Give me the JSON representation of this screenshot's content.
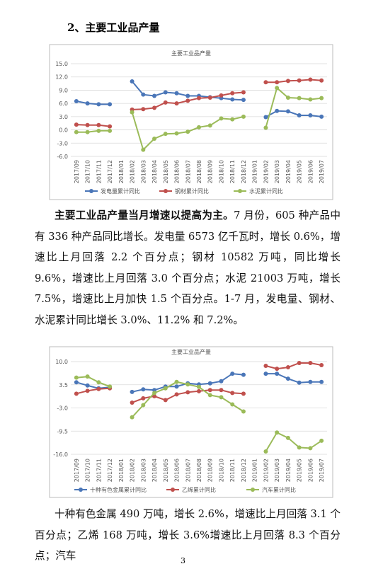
{
  "heading": "2、主要工业品产量",
  "paragraphs": [
    {
      "lead": "主要工业品产量当月增速以提高为主。",
      "text": "7 月份，605 种产品中有 336 种产品同比增长。发电量 6573 亿千瓦时，增长 0.6%，增速比上月回落 2.2 个百分点；钢材 10582 万吨，同比增长 9.6%，增速比上月回落 3.0 个百分点；水泥 21003 万吨，增长 7.5%，增速比上月加快 1.5 个百分点。1-7 月，发电量、钢材、水泥累计同比增长 3.0%、11.2% 和 7.2%。"
    },
    {
      "text": "十种有色金属 490 万吨，增长 2.6%，增速比上月回落 3.1 个百分点；乙烯 168 万吨，增长 3.6%增速比上月回落 8.3 个百分点；汽车"
    }
  ],
  "page_number": "3",
  "chart_data": [
    {
      "type": "line",
      "title": "主要工业品产量",
      "categories": [
        "2017/09",
        "2017/10",
        "2017/11",
        "2017/12",
        "2018/01",
        "2018/02",
        "2018/03",
        "2018/04",
        "2018/05",
        "2018/06",
        "2018/07",
        "2018/08",
        "2018/09",
        "2018/10",
        "2018/11",
        "2018/12",
        "2019/01",
        "2019/02",
        "2019/03",
        "2019/04",
        "2019/05",
        "2019/06",
        "2019/07"
      ],
      "ylim": [
        -6,
        15
      ],
      "yticks": [
        {
          "value": -6,
          "label": "-6.0"
        },
        {
          "value": -3,
          "label": "-3.0"
        },
        {
          "value": 0,
          "label": "0.0"
        },
        {
          "value": 3,
          "label": "3.0"
        },
        {
          "value": 6,
          "label": "6.0"
        },
        {
          "value": 9,
          "label": "9.0"
        },
        {
          "value": 12,
          "label": "12.0"
        },
        {
          "value": 15,
          "label": "15.0"
        }
      ],
      "grid": true,
      "series": [
        {
          "name": "发电量累计同比",
          "color": "#4a76b8",
          "values": [
            6.5,
            6.0,
            5.8,
            5.8,
            null,
            11.0,
            8.0,
            7.7,
            8.5,
            8.3,
            7.7,
            7.7,
            7.4,
            7.2,
            6.9,
            6.8,
            null,
            2.9,
            4.3,
            4.2,
            3.3,
            3.3,
            3.0
          ]
        },
        {
          "name": "钢材累计同比",
          "color": "#c0504d",
          "values": [
            1.2,
            1.1,
            1.1,
            0.8,
            null,
            4.6,
            4.7,
            5.0,
            6.2,
            6.0,
            6.6,
            7.2,
            7.3,
            7.8,
            8.3,
            8.5,
            null,
            10.8,
            10.8,
            11.1,
            11.2,
            11.4,
            11.2
          ]
        },
        {
          "name": "水泥累计同比",
          "color": "#9bbb59",
          "values": [
            -0.5,
            -0.5,
            -0.2,
            -0.2,
            null,
            4.0,
            -4.5,
            -2.0,
            -0.9,
            -0.8,
            -0.4,
            0.6,
            1.0,
            2.6,
            2.4,
            3.0,
            null,
            0.5,
            9.5,
            7.3,
            7.2,
            6.9,
            7.2
          ]
        }
      ]
    },
    {
      "type": "line",
      "title": "主要工业品产量",
      "categories": [
        "2017/09",
        "2017/10",
        "2017/11",
        "2017/12",
        "2018/01",
        "2018/02",
        "2018/03",
        "2018/04",
        "2018/05",
        "2018/06",
        "2018/07",
        "2018/08",
        "2018/09",
        "2018/10",
        "2018/11",
        "2018/12",
        "2019/01",
        "2019/02",
        "2019/03",
        "2019/04",
        "2019/05",
        "2019/06",
        "2019/07"
      ],
      "ylim": [
        -16,
        10
      ],
      "yticks": [
        {
          "value": -16,
          "label": "-16.0"
        },
        -9.5,
        {
          "value": -3,
          "label": "-3.0"
        },
        3.5,
        {
          "value": 10,
          "label": "10.0"
        }
      ],
      "grid": true,
      "series": [
        {
          "name": "十种有色金属累计同比",
          "color": "#4a76b8",
          "values": [
            4.2,
            3.3,
            2.5,
            2.8,
            null,
            1.5,
            2.2,
            2.0,
            3.0,
            3.0,
            3.9,
            3.6,
            3.9,
            4.5,
            6.6,
            6.3,
            null,
            6.6,
            6.6,
            5.2,
            4.1,
            4.3,
            4.3
          ]
        },
        {
          "name": "乙烯累计同比",
          "color": "#c0504d",
          "values": [
            1.0,
            1.8,
            2.3,
            2.5,
            null,
            -1.5,
            -0.3,
            0.3,
            -0.8,
            0.8,
            1.4,
            1.7,
            2.0,
            2.0,
            1.2,
            1.0,
            null,
            8.8,
            8.0,
            8.4,
            9.6,
            9.6,
            9.0
          ]
        },
        {
          "name": "汽车累计同比",
          "color": "#9bbb59",
          "values": [
            5.5,
            5.8,
            4.2,
            3.0,
            null,
            -5.6,
            -2.2,
            1.2,
            2.5,
            4.3,
            3.6,
            2.9,
            0.6,
            0.0,
            -2.0,
            -4.0,
            null,
            -15.2,
            -9.9,
            -11.4,
            -14.1,
            -14.3,
            -12.2
          ]
        }
      ]
    }
  ]
}
